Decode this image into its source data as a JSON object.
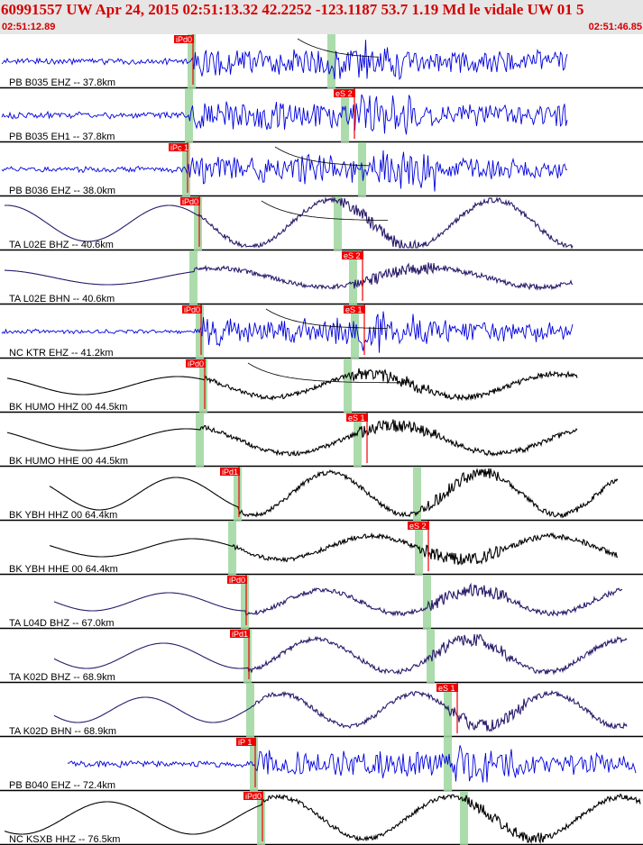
{
  "header": {
    "title": "60991557 UW Apr 24, 2015 02:51:13.32   42.2252 -123.1187 53.7 1.19 Md le vidale UW 01   5",
    "start_time": "02:51:12.89",
    "end_time": "02:51:46.85"
  },
  "colors": {
    "header_bg": "#e6e6e6",
    "header_text": "#d40000",
    "pick_red": "#ee0000",
    "shade_green": "#9ed69e",
    "trace_blue": "#0000dd",
    "trace_purple": "#2a1a6a",
    "trace_black": "#000000"
  },
  "traces": [
    {
      "label": "PB B035 EHZ -- 37.8km",
      "pick": "iPd0",
      "s_pick": "",
      "color": "blue"
    },
    {
      "label": "PB B035 EH1 -- 37.8km",
      "pick": "",
      "s_pick": "eS 2",
      "color": "blue"
    },
    {
      "label": "PB B036 EHZ -- 38.0km",
      "pick": "iPc 1",
      "s_pick": "",
      "color": "blue"
    },
    {
      "label": "TA L02E BHZ -- 40.6km",
      "pick": "iPd0",
      "s_pick": "",
      "color": "purple"
    },
    {
      "label": "TA L02E BHN -- 40.6km",
      "pick": "",
      "s_pick": "eS 2",
      "color": "purple"
    },
    {
      "label": "NC KTR EHZ -- 41.2km",
      "pick": "iPd0",
      "s_pick": "eS 1",
      "color": "blue"
    },
    {
      "label": "BK HUMO HHZ 00 44.5km",
      "pick": "iPd0",
      "s_pick": "",
      "color": "black"
    },
    {
      "label": "BK HUMO HHE 00 44.5km",
      "pick": "",
      "s_pick": "eS 1",
      "color": "black"
    },
    {
      "label": "BK YBH HHZ 00 64.4km",
      "pick": "iPd1",
      "s_pick": "",
      "color": "black"
    },
    {
      "label": "BK YBH HHE 00 64.4km",
      "pick": "",
      "s_pick": "eS 2",
      "color": "black"
    },
    {
      "label": "TA L04D BHZ -- 67.0km",
      "pick": "iPd0",
      "s_pick": "",
      "color": "purple"
    },
    {
      "label": "TA K02D BHZ -- 68.9km",
      "pick": "iPd1",
      "s_pick": "",
      "color": "purple"
    },
    {
      "label": "TA K02D BHN -- 68.9km",
      "pick": "",
      "s_pick": "eS 1",
      "color": "purple"
    },
    {
      "label": "PB B040 EHZ -- 72.4km",
      "pick": "iP 1",
      "s_pick": "",
      "color": "blue"
    },
    {
      "label": "NC KSXB HHZ -- 76.5km",
      "pick": "iPd0",
      "s_pick": "",
      "color": "black"
    }
  ]
}
